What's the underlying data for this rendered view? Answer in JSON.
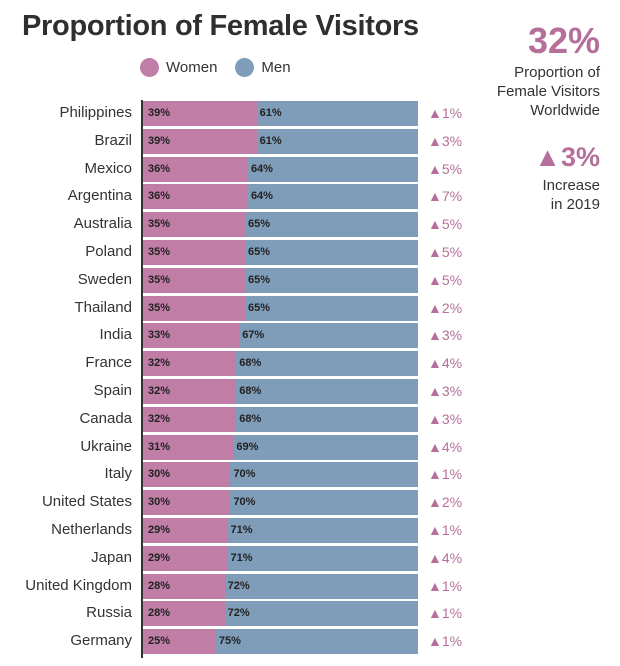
{
  "title": "Proportion of Female Visitors",
  "legend": {
    "women": "Women",
    "men": "Men"
  },
  "colors": {
    "women": "#c07ea6",
    "men": "#7f9cb8",
    "accent": "#b56f9a"
  },
  "summary": {
    "worldwide_value": "32%",
    "worldwide_label": "Proportion of Female Visitors Worldwide",
    "increase_value": "▲3%",
    "increase_label": "Increase in 2019"
  },
  "chart_data": {
    "type": "bar",
    "stacked": true,
    "orientation": "horizontal",
    "title": "Proportion of Female Visitors",
    "categories": [
      "Philippines",
      "Brazil",
      "Mexico",
      "Argentina",
      "Australia",
      "Poland",
      "Sweden",
      "Thailand",
      "India",
      "France",
      "Spain",
      "Canada",
      "Ukraine",
      "Italy",
      "United States",
      "Netherlands",
      "Japan",
      "United Kingdom",
      "Russia",
      "Germany"
    ],
    "series": [
      {
        "name": "Women",
        "values": [
          39,
          39,
          36,
          36,
          35,
          35,
          35,
          35,
          33,
          32,
          32,
          32,
          31,
          30,
          30,
          29,
          29,
          28,
          28,
          25
        ]
      },
      {
        "name": "Men",
        "values": [
          61,
          61,
          64,
          64,
          65,
          65,
          65,
          65,
          67,
          68,
          68,
          68,
          69,
          70,
          70,
          71,
          71,
          72,
          72,
          75
        ]
      }
    ],
    "change": [
      "▲1%",
      "▲3%",
      "▲5%",
      "▲7%",
      "▲5%",
      "▲5%",
      "▲5%",
      "▲2%",
      "▲3%",
      "▲4%",
      "▲3%",
      "▲3%",
      "▲4%",
      "▲1%",
      "▲2%",
      "▲1%",
      "▲4%",
      "▲1%",
      "▲1%",
      "▲1%"
    ],
    "xlim": [
      0,
      100
    ],
    "legend_position": "top"
  }
}
